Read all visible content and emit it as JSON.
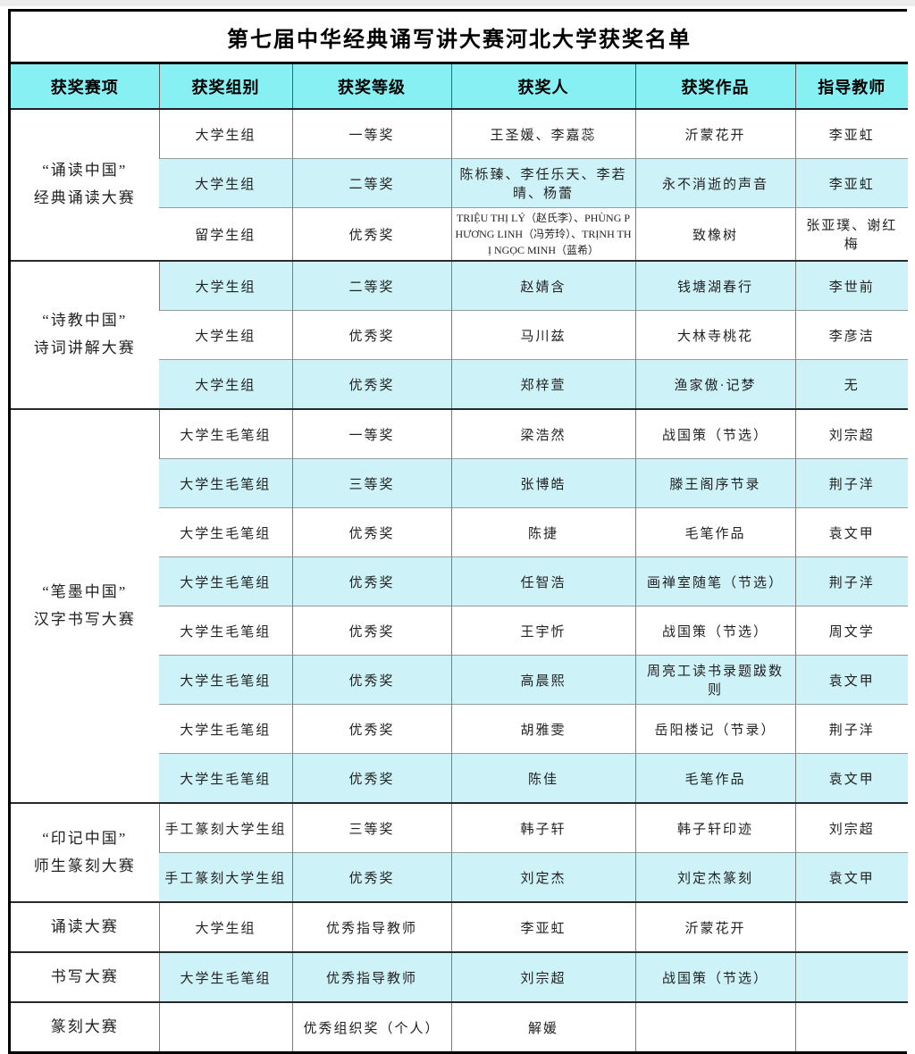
{
  "title": "第七届中华经典诵写讲大赛河北大学获奖名单",
  "columns": [
    "获奖赛项",
    "获奖组别",
    "获奖等级",
    "获奖人",
    "获奖作品",
    "指导教师"
  ],
  "colors": {
    "header_bg": "#87f0f3",
    "row_highlight_bg": "#cdf3f8",
    "row_bg": "#ffffff",
    "outer_border": "#000000",
    "inner_border": "#9b9b9b",
    "section_border": "#2a2a2a",
    "text": "#000000"
  },
  "rows": [
    {
      "event": "“诵读中国”\n经典诵读大赛",
      "event_rowspan": 3,
      "section_start": true,
      "group": "大学生组",
      "grade": "一等奖",
      "winner": "王圣媛、李嘉蕊",
      "work": "沂蒙花开",
      "teacher": "李亚虹",
      "highlight": false
    },
    {
      "group": "大学生组",
      "grade": "二等奖",
      "winner": "陈栎臻、李任乐天、李若晴、杨蕾",
      "work": "永不消逝的声音",
      "teacher": "李亚虹",
      "highlight": true
    },
    {
      "group": "留学生组",
      "grade": "优秀奖",
      "winner": "TRIỆU THỊ LÝ（赵氏李）、PHÙNG PHƯƠNG LINH（冯芳玲）、TRỊNH THỊ NGỌC MINH（蓝希）",
      "winner_small": true,
      "work": "致橡树",
      "teacher": "张亚璞、谢红梅",
      "highlight": false
    },
    {
      "event": "“诗教中国”\n诗词讲解大赛",
      "event_rowspan": 3,
      "section_start": true,
      "group": "大学生组",
      "grade": "二等奖",
      "winner": "赵婧含",
      "work": "钱塘湖春行",
      "teacher": "李世前",
      "highlight": true
    },
    {
      "group": "大学生组",
      "grade": "优秀奖",
      "winner": "马川兹",
      "work": "大林寺桃花",
      "teacher": "李彦洁",
      "highlight": false
    },
    {
      "group": "大学生组",
      "grade": "优秀奖",
      "winner": "郑梓萱",
      "work": "渔家傲·记梦",
      "teacher": "无",
      "highlight": true
    },
    {
      "event": "“笔墨中国”\n汉字书写大赛",
      "event_rowspan": 8,
      "section_start": true,
      "group": "大学生毛笔组",
      "grade": "一等奖",
      "winner": "梁浩然",
      "work": "战国策（节选）",
      "teacher": "刘宗超",
      "highlight": false
    },
    {
      "group": "大学生毛笔组",
      "grade": "三等奖",
      "winner": "张博皓",
      "work": "滕王阁序节录",
      "teacher": "荆子洋",
      "highlight": true
    },
    {
      "group": "大学生毛笔组",
      "grade": "优秀奖",
      "winner": "陈捷",
      "work": "毛笔作品",
      "teacher": "袁文甲",
      "highlight": false
    },
    {
      "group": "大学生毛笔组",
      "grade": "优秀奖",
      "winner": "任智浩",
      "work": "画禅室随笔（节选）",
      "teacher": "荆子洋",
      "highlight": true
    },
    {
      "group": "大学生毛笔组",
      "grade": "优秀奖",
      "winner": "王宇忻",
      "work": "战国策（节选）",
      "teacher": "周文学",
      "highlight": false
    },
    {
      "group": "大学生毛笔组",
      "grade": "优秀奖",
      "winner": "高晨熙",
      "work": "周亮工读书录题跋数则",
      "teacher": "袁文甲",
      "highlight": true
    },
    {
      "group": "大学生毛笔组",
      "grade": "优秀奖",
      "winner": "胡雅雯",
      "work": "岳阳楼记（节录）",
      "teacher": "荆子洋",
      "highlight": false
    },
    {
      "group": "大学生毛笔组",
      "grade": "优秀奖",
      "winner": "陈佳",
      "work": "毛笔作品",
      "teacher": "袁文甲",
      "highlight": true
    },
    {
      "event": "“印记中国”\n师生篆刻大赛",
      "event_rowspan": 2,
      "section_start": true,
      "group": "手工篆刻大学生组",
      "grade": "三等奖",
      "winner": "韩子轩",
      "work": "韩子轩印迹",
      "teacher": "刘宗超",
      "highlight": false
    },
    {
      "group": "手工篆刻大学生组",
      "grade": "优秀奖",
      "winner": "刘定杰",
      "work": "刘定杰篆刻",
      "teacher": "袁文甲",
      "highlight": true
    },
    {
      "event": "诵读大赛",
      "event_rowspan": 1,
      "section_start": true,
      "group": "大学生组",
      "grade": "优秀指导教师",
      "winner": "李亚虹",
      "work": "沂蒙花开",
      "teacher": "",
      "highlight": false
    },
    {
      "event": "书写大赛",
      "event_rowspan": 1,
      "section_start": true,
      "group": "大学生毛笔组",
      "grade": "优秀指导教师",
      "winner": "刘宗超",
      "work": "战国策（节选）",
      "teacher": "",
      "highlight": true
    },
    {
      "event": "篆刻大赛",
      "event_rowspan": 1,
      "section_start": true,
      "group": "",
      "grade": "优秀组织奖（个人）",
      "winner": "解媛",
      "work": "",
      "teacher": "",
      "highlight": false
    }
  ]
}
